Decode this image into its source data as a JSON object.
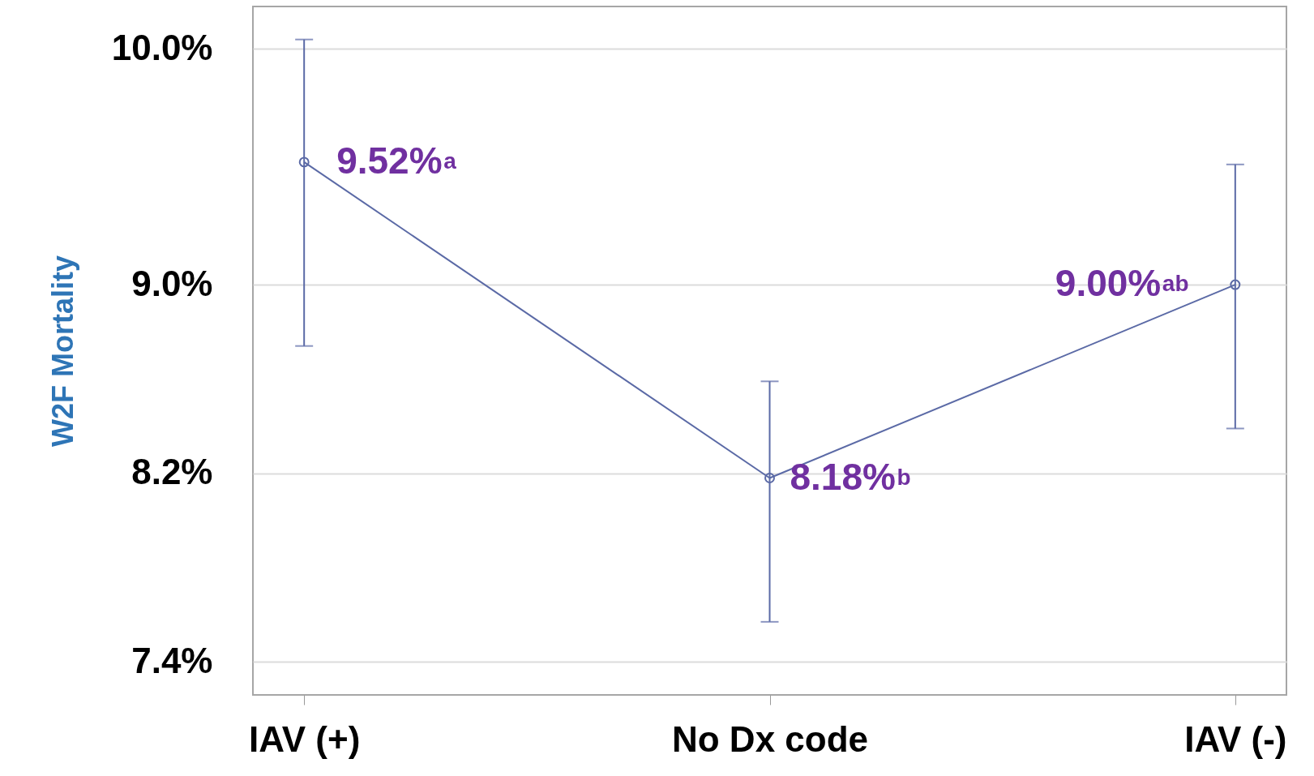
{
  "chart_data": {
    "type": "line",
    "ylabel": "W2F Mortality",
    "categories": [
      "IAV (+)",
      "No Dx code",
      "IAV (-)"
    ],
    "series": [
      {
        "color": "#5b6aa6",
        "values": [
          9.52,
          8.18,
          9.0
        ],
        "errors": [
          [
            8.74,
            10.04
          ],
          [
            7.57,
            8.59
          ],
          [
            8.39,
            9.51
          ]
        ],
        "value_labels": [
          "9.52%$^{a}$",
          "8.18%$^{b}$",
          "9.00%$^{ab}$"
        ]
      }
    ],
    "ylim": [
      7.26,
      10.18
    ],
    "yticks": [
      {
        "value": 7.4,
        "label": "7.4%"
      },
      {
        "value": 8.2,
        "label": "8.2%"
      },
      {
        "value": 9.0,
        "label": "9.0%"
      },
      {
        "value": 10.0,
        "label": "10.0%"
      }
    ],
    "grid": "y",
    "marker": "circle",
    "line_style": "solid"
  }
}
